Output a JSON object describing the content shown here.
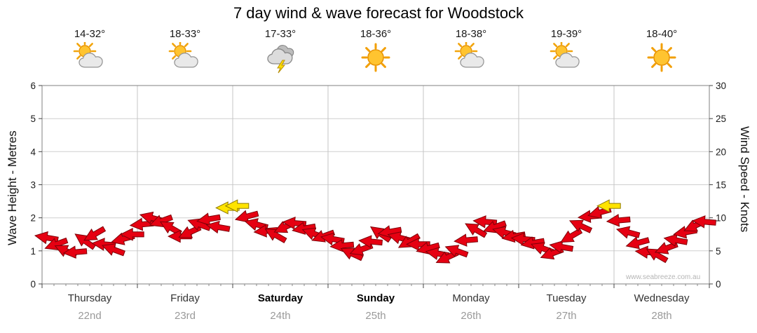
{
  "title": "7 day wind & wave forecast for Woodstock",
  "watermark": "www.seabreeze.com.au",
  "days": [
    {
      "name": "Thursday",
      "date": "22nd",
      "temp": "14-32°",
      "icon": "sun-cloud",
      "bold": false
    },
    {
      "name": "Friday",
      "date": "23rd",
      "temp": "18-33°",
      "icon": "sun-cloud",
      "bold": false
    },
    {
      "name": "Saturday",
      "date": "24th",
      "temp": "17-33°",
      "icon": "storm",
      "bold": true
    },
    {
      "name": "Sunday",
      "date": "25th",
      "temp": "18-36°",
      "icon": "sunny",
      "bold": true
    },
    {
      "name": "Monday",
      "date": "26th",
      "temp": "18-38°",
      "icon": "sun-cloud",
      "bold": false
    },
    {
      "name": "Tuesday",
      "date": "27th",
      "temp": "19-39°",
      "icon": "sun-cloud",
      "bold": false
    },
    {
      "name": "Wednesday",
      "date": "28th",
      "temp": "18-40°",
      "icon": "sunny",
      "bold": false
    }
  ],
  "axes": {
    "left_label": "Wave Height - Metres",
    "right_label": "Wind Speed - Knots",
    "left_ticks": [
      0,
      1,
      2,
      3,
      4,
      5,
      6
    ],
    "right_ticks": [
      0,
      5,
      10,
      15,
      20,
      25,
      30
    ]
  },
  "colors": {
    "arrow": "#e60012",
    "arrow_outline": "#7d0008",
    "arrow_highlight": "#ffe400",
    "arrow_highlight_outline": "#8f7a00",
    "grid": "#cfcfcf",
    "day_separator": "#c4c4c4",
    "plot_border": "#808080"
  },
  "chart_data": {
    "type": "scatter",
    "subtype": "wind-arrows",
    "title": "7 day wind & wave forecast for Woodstock",
    "xlabel": "",
    "ylabel_left": "Wave Height - Metres",
    "ylabel_right": "Wind Speed - Knots",
    "ylim_left_metres": [
      0,
      6
    ],
    "ylim_right_knots": [
      0,
      30
    ],
    "grid": true,
    "legend": "none",
    "categories": [
      "Thursday 22nd",
      "Friday 23rd",
      "Saturday 24th",
      "Sunday 25th",
      "Monday 26th",
      "Tuesday 27th",
      "Wednesday 28th"
    ],
    "points_per_day": 10,
    "series": [
      {
        "name": "Wind Speed (knots)",
        "values": [
          7.0,
          6.0,
          5.0,
          4.8,
          6.5,
          7.5,
          6.0,
          5.2,
          6.8,
          7.5,
          9.0,
          10.0,
          9.5,
          8.5,
          7.2,
          7.8,
          9.0,
          9.8,
          8.6,
          11.5,
          11.8,
          10.2,
          9.0,
          8.0,
          7.4,
          8.6,
          9.2,
          8.4,
          7.6,
          7.2,
          6.8,
          5.8,
          4.6,
          5.2,
          6.4,
          7.6,
          7.9,
          7.0,
          6.4,
          6.0,
          5.4,
          4.6,
          4.0,
          5.0,
          6.6,
          8.2,
          9.4,
          8.6,
          7.8,
          7.2,
          6.8,
          6.2,
          5.4,
          4.6,
          5.6,
          7.2,
          8.8,
          10.2,
          10.8,
          11.8,
          9.6,
          7.8,
          6.2,
          4.8,
          4.4,
          5.4,
          6.6,
          7.8,
          8.8,
          9.4
        ]
      }
    ],
    "directions_deg": [
      190,
      160,
      205,
      175,
      215,
      150,
      185,
      200,
      165,
      180,
      175,
      195,
      160,
      210,
      180,
      155,
      200,
      170,
      190,
      180,
      180,
      165,
      195,
      175,
      210,
      155,
      185,
      170,
      200,
      160,
      190,
      175,
      205,
      160,
      185,
      215,
      170,
      195,
      150,
      180,
      165,
      190,
      155,
      200,
      175,
      210,
      185,
      160,
      195,
      170,
      185,
      170,
      200,
      160,
      190,
      150,
      205,
      175,
      165,
      180,
      175,
      195,
      165,
      185,
      210,
      160,
      190,
      170,
      155,
      185
    ],
    "highlight_indices": [
      19,
      20,
      59
    ]
  }
}
